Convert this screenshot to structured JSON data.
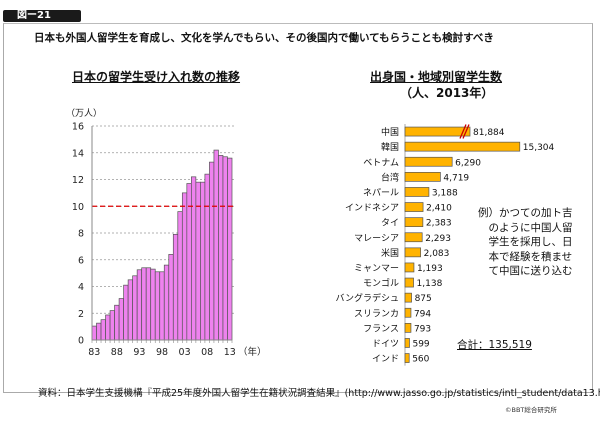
{
  "figure_tag": "図ー21",
  "headline": "日本も外国人留学生を育成し、文化を学んでもらい、その後国内で働いてもらうことも検討すべき",
  "note": "例）かつての加ト吉\n　のように中国人留\n　学生を採用し、日\n　本で経験を積ませ\n　て中国に送り込む",
  "total_label": "合計：135,519",
  "source": "資料：日本学生支援機構『平成25年度外国人留学生在籍状況調査結果』(http://www.jasso.go.jp/statistics/intl_student/data13.html)",
  "copyright": "©BBT総合研究所",
  "colors": {
    "left_bar_fill": "#ee82ee",
    "left_bar_stroke": "#555555",
    "reference_line": "#dd0000",
    "right_bar_fill": "#ffb300",
    "break_mark": "#cc0000"
  },
  "chart_data": [
    {
      "type": "bar",
      "title": "日本の留学生受け入れ数の推移",
      "ylabel": "（万人）",
      "xlabel": "（年）",
      "ylim": [
        0,
        16
      ],
      "yticks": [
        0,
        2,
        4,
        6,
        8,
        10,
        12,
        14,
        16
      ],
      "grid": true,
      "reference_line": {
        "value": 10,
        "style": "dashed"
      },
      "x_tick_labels": [
        "83",
        "88",
        "93",
        "98",
        "03",
        "08",
        "13"
      ],
      "x_tick_years": [
        1983,
        1988,
        1993,
        1998,
        2003,
        2008,
        2013
      ],
      "categories": [
        1983,
        1984,
        1985,
        1986,
        1987,
        1988,
        1989,
        1990,
        1991,
        1992,
        1993,
        1994,
        1995,
        1996,
        1997,
        1998,
        1999,
        2000,
        2001,
        2002,
        2003,
        2004,
        2005,
        2006,
        2007,
        2008,
        2009,
        2010,
        2011,
        2012,
        2013
      ],
      "values": [
        1.04,
        1.26,
        1.52,
        1.87,
        2.2,
        2.6,
        3.1,
        4.1,
        4.5,
        4.8,
        5.25,
        5.4,
        5.4,
        5.3,
        5.1,
        5.1,
        5.6,
        6.4,
        7.9,
        9.6,
        11.0,
        11.7,
        12.2,
        11.8,
        11.8,
        12.4,
        13.3,
        14.2,
        13.8,
        13.7,
        13.6
      ]
    },
    {
      "type": "bar",
      "orientation": "horizontal",
      "title": "出身国・地域別留学生数",
      "subtitle": "（人、2013年）",
      "axis_break": "中国",
      "categories": [
        "中国",
        "韓国",
        "ベトナム",
        "台湾",
        "ネパール",
        "インドネシア",
        "タイ",
        "マレーシア",
        "米国",
        "ミャンマー",
        "モンゴル",
        "バングラデシュ",
        "スリランカ",
        "フランス",
        "ドイツ",
        "インド"
      ],
      "values": [
        81884,
        15304,
        6290,
        4719,
        3188,
        2410,
        2383,
        2293,
        2083,
        1193,
        1138,
        875,
        794,
        793,
        599,
        560
      ],
      "value_labels": [
        "81,884",
        "15,304",
        "6,290",
        "4,719",
        "3,188",
        "2,410",
        "2,383",
        "2,293",
        "2,083",
        "1,193",
        "1,138",
        "875",
        "794",
        "793",
        "599",
        "560"
      ],
      "total": 135519
    }
  ]
}
